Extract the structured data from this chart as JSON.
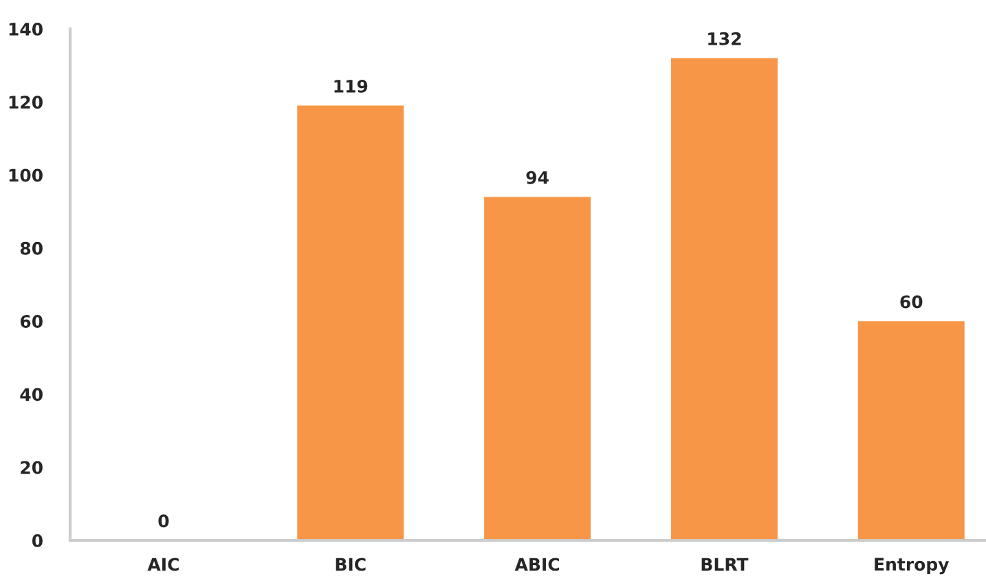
{
  "chart_data": {
    "type": "bar",
    "categories": [
      "AIC",
      "BIC",
      "ABIC",
      "BLRT",
      "Entropy"
    ],
    "values": [
      0,
      119,
      94,
      132,
      60
    ],
    "color": "#f79646",
    "ylim": [
      0,
      140
    ],
    "yticks": [
      0,
      20,
      40,
      60,
      80,
      100,
      120,
      140
    ],
    "data_labels": true,
    "grid": false,
    "legend": false
  }
}
